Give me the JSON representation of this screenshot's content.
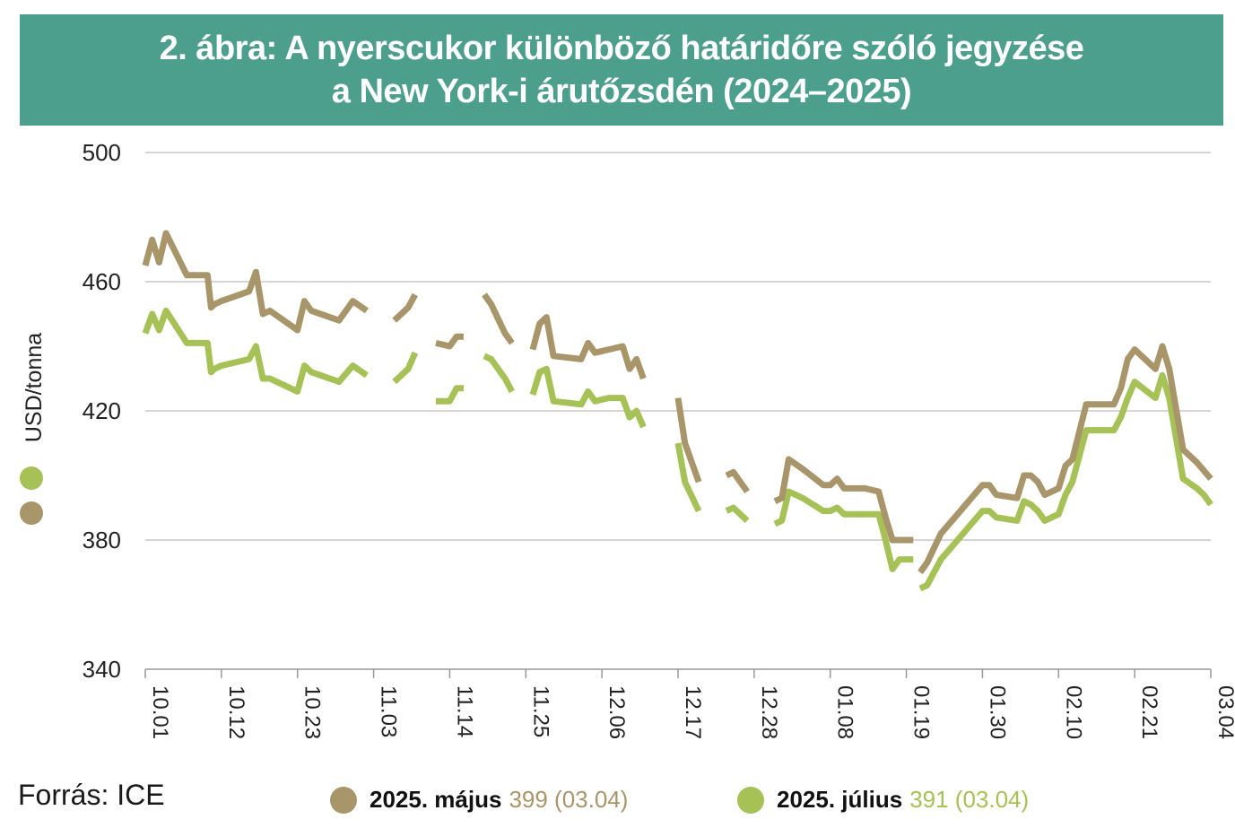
{
  "title": {
    "line1": "2. ábra: A nyerscukor különböző határidőre szóló jegyzése",
    "line2": "a New York-i árutőzsdén (2024–2025)"
  },
  "source": "Forrás: ICE",
  "colors": {
    "may": "#a8956a",
    "july": "#a6c155",
    "grid": "#c8c8c8",
    "header": "#4d9f8d"
  },
  "legend": [
    {
      "name": "2025. május",
      "value": "399 (03.04)",
      "color": "#a8956a"
    },
    {
      "name": "2025. július",
      "value": "391 (03.04)",
      "color": "#a6c155"
    }
  ],
  "chart_data": {
    "type": "line",
    "ylabel": "USD/tonna",
    "ylim": [
      340,
      500
    ],
    "yticks": [
      340,
      380,
      420,
      460,
      500
    ],
    "grid": true,
    "x_tick_labels": [
      "10.01",
      "10.12",
      "10.23",
      "11.03",
      "11.14",
      "11.25",
      "12.06",
      "12.17",
      "12.28",
      "01.08",
      "01.19",
      "01.30",
      "02.10",
      "02.21",
      "03.04"
    ],
    "x_tick_day_index": [
      0,
      11,
      22,
      33,
      44,
      55,
      66,
      77,
      88,
      99,
      110,
      121,
      132,
      143,
      154
    ],
    "x_note": "x values are the day index from 10.01 (0 = 10.01, 154 = 03.04)",
    "series": [
      {
        "name": "2025. május",
        "segments": [
          [
            [
              0,
              465
            ],
            [
              1,
              473
            ],
            [
              2,
              466
            ],
            [
              3,
              475
            ],
            [
              6,
              462
            ],
            [
              9,
              462
            ],
            [
              9.5,
              452
            ],
            [
              10,
              453
            ],
            [
              11,
              454
            ],
            [
              15,
              457
            ],
            [
              16,
              463
            ],
            [
              17,
              450
            ],
            [
              18,
              451
            ],
            [
              22,
              445
            ],
            [
              23,
              454
            ],
            [
              24,
              451
            ],
            [
              28,
              448
            ],
            [
              30,
              454
            ],
            [
              32,
              451
            ]
          ],
          [
            [
              36,
              448
            ],
            [
              38,
              452
            ],
            [
              39,
              456
            ]
          ],
          [
            [
              42,
              441
            ],
            [
              44,
              440
            ],
            [
              45,
              443
            ],
            [
              46,
              443
            ]
          ],
          [
            [
              49,
              456
            ],
            [
              50,
              453
            ],
            [
              52,
              444
            ],
            [
              53,
              441
            ]
          ],
          [
            [
              56,
              439
            ],
            [
              57,
              447
            ],
            [
              58,
              449
            ],
            [
              59,
              437
            ],
            [
              63,
              436
            ],
            [
              64,
              441
            ],
            [
              65,
              438
            ],
            [
              67,
              439
            ],
            [
              69,
              440
            ],
            [
              70,
              433
            ],
            [
              71,
              436
            ],
            [
              72,
              430
            ]
          ],
          [
            [
              77,
              424
            ],
            [
              78,
              410
            ],
            [
              80,
              398
            ]
          ],
          [
            [
              84,
              400
            ],
            [
              85,
              401
            ],
            [
              87,
              395
            ]
          ],
          [
            [
              91,
              392
            ],
            [
              92,
              393
            ],
            [
              93,
              405
            ],
            [
              95,
              402
            ],
            [
              98,
              397
            ],
            [
              99,
              397
            ],
            [
              100,
              399
            ],
            [
              101,
              396
            ],
            [
              104,
              396
            ],
            [
              106,
              395
            ],
            [
              107,
              387
            ],
            [
              108,
              380
            ],
            [
              111,
              380
            ]
          ],
          [
            [
              112,
              370
            ],
            [
              113,
              373
            ],
            [
              115,
              382
            ],
            [
              117,
              387
            ],
            [
              119,
              392
            ],
            [
              121,
              397
            ],
            [
              122,
              397
            ],
            [
              123,
              394
            ],
            [
              126,
              393
            ],
            [
              127,
              400
            ],
            [
              128,
              400
            ],
            [
              129,
              398
            ],
            [
              130,
              394
            ],
            [
              132,
              396
            ],
            [
              133,
              403
            ],
            [
              134,
              405
            ],
            [
              136,
              422
            ],
            [
              140,
              422
            ],
            [
              141,
              427
            ],
            [
              142,
              436
            ],
            [
              143,
              439
            ],
            [
              146,
              433
            ],
            [
              147,
              440
            ],
            [
              148,
              433
            ],
            [
              150,
              408
            ],
            [
              152,
              404
            ],
            [
              154,
              399
            ]
          ]
        ]
      },
      {
        "name": "2025. július",
        "segments": [
          [
            [
              0,
              444
            ],
            [
              1,
              450
            ],
            [
              2,
              445
            ],
            [
              3,
              451
            ],
            [
              6,
              441
            ],
            [
              9,
              441
            ],
            [
              9.5,
              432
            ],
            [
              10,
              433
            ],
            [
              11,
              434
            ],
            [
              15,
              436
            ],
            [
              16,
              440
            ],
            [
              17,
              430
            ],
            [
              18,
              430
            ],
            [
              22,
              426
            ],
            [
              23,
              434
            ],
            [
              24,
              432
            ],
            [
              28,
              429
            ],
            [
              30,
              434
            ],
            [
              32,
              431
            ]
          ],
          [
            [
              36,
              429
            ],
            [
              38,
              433
            ],
            [
              39,
              438
            ]
          ],
          [
            [
              42,
              423
            ],
            [
              44,
              423
            ],
            [
              45,
              427
            ],
            [
              46,
              427
            ]
          ],
          [
            [
              49,
              437
            ],
            [
              50,
              436
            ],
            [
              52,
              430
            ],
            [
              53,
              426
            ]
          ],
          [
            [
              56,
              425
            ],
            [
              57,
              432
            ],
            [
              58,
              433
            ],
            [
              59,
              423
            ],
            [
              63,
              422
            ],
            [
              64,
              426
            ],
            [
              65,
              423
            ],
            [
              67,
              424
            ],
            [
              69,
              424
            ],
            [
              70,
              418
            ],
            [
              71,
              420
            ],
            [
              72,
              415
            ]
          ],
          [
            [
              77,
              410
            ],
            [
              78,
              398
            ],
            [
              80,
              389
            ]
          ],
          [
            [
              84,
              389
            ],
            [
              85,
              390
            ],
            [
              87,
              386
            ]
          ],
          [
            [
              91,
              385
            ],
            [
              92,
              386
            ],
            [
              93,
              395
            ],
            [
              95,
              393
            ],
            [
              98,
              389
            ],
            [
              99,
              389
            ],
            [
              100,
              390
            ],
            [
              101,
              388
            ],
            [
              104,
              388
            ],
            [
              106,
              388
            ],
            [
              107,
              380
            ],
            [
              108,
              371
            ],
            [
              109,
              374
            ],
            [
              111,
              374
            ]
          ],
          [
            [
              112,
              365
            ],
            [
              113,
              366
            ],
            [
              115,
              374
            ],
            [
              117,
              379
            ],
            [
              119,
              384
            ],
            [
              121,
              389
            ],
            [
              122,
              389
            ],
            [
              123,
              387
            ],
            [
              126,
              386
            ],
            [
              127,
              392
            ],
            [
              128,
              391
            ],
            [
              129,
              389
            ],
            [
              130,
              386
            ],
            [
              132,
              388
            ],
            [
              133,
              394
            ],
            [
              134,
              398
            ],
            [
              136,
              414
            ],
            [
              140,
              414
            ],
            [
              141,
              418
            ],
            [
              142,
              424
            ],
            [
              143,
              429
            ],
            [
              146,
              424
            ],
            [
              147,
              431
            ],
            [
              148,
              424
            ],
            [
              150,
              399
            ],
            [
              152,
              396
            ],
            [
              153,
              394
            ],
            [
              154,
              391
            ]
          ]
        ]
      }
    ]
  }
}
